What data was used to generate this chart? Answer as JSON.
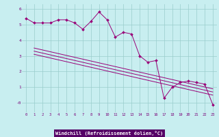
{
  "xlabel": "Windchill (Refroidissement éolien,°C)",
  "background_color": "#c8eef0",
  "grid_color": "#99cccc",
  "line_color": "#990077",
  "xlim": [
    -0.5,
    23.5
  ],
  "ylim": [
    -0.6,
    6.3
  ],
  "yticks": [
    0,
    1,
    2,
    3,
    4,
    5,
    6
  ],
  "ytick_labels": [
    "-0",
    "1",
    "2",
    "3",
    "4",
    "5",
    "6"
  ],
  "xticks": [
    0,
    1,
    2,
    3,
    4,
    5,
    6,
    7,
    8,
    9,
    10,
    11,
    12,
    13,
    14,
    15,
    16,
    17,
    18,
    19,
    20,
    21,
    22,
    23
  ],
  "series1_x": [
    0,
    1,
    2,
    3,
    4,
    5,
    6,
    7,
    8,
    9,
    10,
    11,
    12,
    13,
    14,
    15,
    16,
    17,
    18,
    19,
    20,
    21,
    22,
    23
  ],
  "series1_y": [
    5.4,
    5.1,
    5.1,
    5.1,
    5.3,
    5.3,
    5.1,
    4.7,
    5.2,
    5.8,
    5.3,
    4.2,
    4.5,
    4.4,
    3.0,
    2.6,
    2.7,
    0.3,
    1.0,
    1.3,
    1.4,
    1.3,
    1.2,
    -0.1
  ],
  "series2_x": [
    1,
    23
  ],
  "series2_y": [
    3.5,
    0.9
  ],
  "series3_x": [
    1,
    23
  ],
  "series3_y": [
    3.3,
    0.7
  ],
  "series4_x": [
    1,
    23
  ],
  "series4_y": [
    3.1,
    0.5
  ],
  "label_bar_color": "#7700aa",
  "label_bar_height": 12,
  "tick_color": "#770077",
  "tick_fontsize": 5,
  "xlabel_fontsize": 5
}
